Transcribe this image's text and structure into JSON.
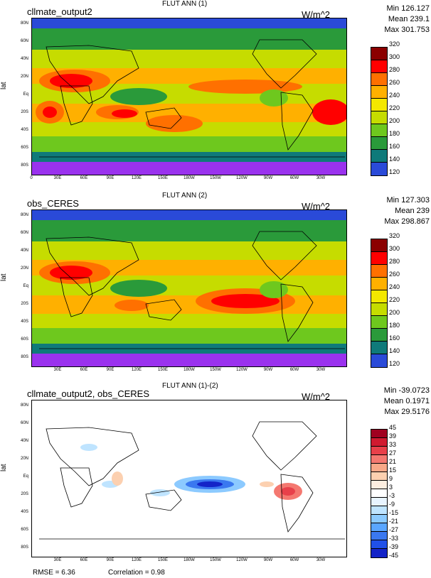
{
  "panels": [
    {
      "title": "FLUT ANN (1)",
      "case": "cllmate_output2",
      "units": "W/m^2",
      "stats": {
        "min": "Min 126.127",
        "mean": "Mean 239.1",
        "max": "Max 301.753"
      },
      "y_label": "lat",
      "lat_ticks": [
        "80N",
        "60N",
        "40N",
        "20N",
        "Eq",
        "20S",
        "40S",
        "60S",
        "80S"
      ],
      "lon_ticks": [
        "0",
        "30E",
        "60E",
        "90E",
        "120E",
        "150E",
        "180W",
        "150W",
        "120W",
        "90W",
        "60W",
        "30W"
      ],
      "colorbar_labels": [
        "320",
        "300",
        "280",
        "260",
        "240",
        "220",
        "200",
        "180",
        "160",
        "140",
        "120"
      ],
      "colorbar_colors": [
        "#8b0000",
        "#ff0000",
        "#ff7000",
        "#ffb000",
        "#f4e800",
        "#c6dc00",
        "#6ec81e",
        "#2a9a3a",
        "#0f7a7a",
        "#2a4ad8",
        "#9a32ee"
      ]
    },
    {
      "title": "FLUT ANN (2)",
      "case": "obs_CERES",
      "units": "W/m^2",
      "stats": {
        "min": "Min 127.303",
        "mean": "Mean 239",
        "max": "Max 298.867"
      },
      "y_label": "lat",
      "lat_ticks": [
        "80N",
        "60N",
        "40N",
        "20N",
        "Eq",
        "20S",
        "40S",
        "60S",
        "80S"
      ],
      "lon_ticks": [
        "30E",
        "60E",
        "90E",
        "120E",
        "150E",
        "180W",
        "150W",
        "120W",
        "90W",
        "60W",
        "30W"
      ],
      "colorbar_labels": [
        "320",
        "300",
        "280",
        "260",
        "240",
        "220",
        "200",
        "180",
        "160",
        "140",
        "120"
      ],
      "colorbar_colors": [
        "#8b0000",
        "#ff0000",
        "#ff7000",
        "#ffb000",
        "#f4e800",
        "#c6dc00",
        "#6ec81e",
        "#2a9a3a",
        "#0f7a7a",
        "#2a4ad8",
        "#9a32ee"
      ]
    },
    {
      "title": "FLUT ANN (1)-(2)",
      "case": "cllmate_output2, obs_CERES",
      "units": "W/m^2",
      "stats": {
        "min": "Min -39.0723",
        "mean": "Mean 0.1971",
        "max": "Max 29.5176"
      },
      "y_label": "lat",
      "lat_ticks": [
        "80N",
        "60N",
        "40N",
        "20N",
        "Eq",
        "20S",
        "40S",
        "60S",
        "80S"
      ],
      "lon_ticks": [
        "30E",
        "60E",
        "90E",
        "120E",
        "150E",
        "180W",
        "150W",
        "120W",
        "90W",
        "60W",
        "30W"
      ],
      "colorbar_labels": [
        "45",
        "39",
        "33",
        "27",
        "21",
        "15",
        "9",
        "3",
        "-3",
        "-9",
        "-15",
        "-21",
        "-27",
        "-33",
        "-39",
        "-45"
      ],
      "colorbar_colors": [
        "#a00020",
        "#d01a30",
        "#e8404a",
        "#f47870",
        "#f8a888",
        "#fcd0b0",
        "#fdeee0",
        "#ffffff",
        "#e8f4ff",
        "#bfe4ff",
        "#8ccaff",
        "#5aa6ff",
        "#3a78f0",
        "#2050e8",
        "#1424c8"
      ]
    }
  ],
  "footer": {
    "rmse": "RMSE = 6.36",
    "correlation": "Correlation = 0.98"
  }
}
